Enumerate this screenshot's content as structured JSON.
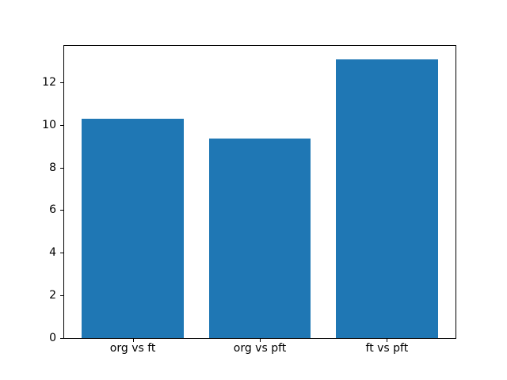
{
  "chart_data": {
    "type": "bar",
    "categories": [
      "org vs ft",
      "org vs pft",
      "ft vs pft"
    ],
    "values": [
      10.3,
      9.36,
      13.07
    ],
    "title": "",
    "xlabel": "",
    "ylabel": "",
    "ylim": [
      0,
      13.7
    ],
    "yticks": [
      0,
      2,
      4,
      6,
      8,
      10,
      12
    ],
    "bar_width_fraction": 0.8,
    "grid": false,
    "legend": false
  },
  "colors": {
    "background": "#ffffff",
    "bar": "#1f77b4",
    "axis": "#000000",
    "text": "#000000"
  }
}
